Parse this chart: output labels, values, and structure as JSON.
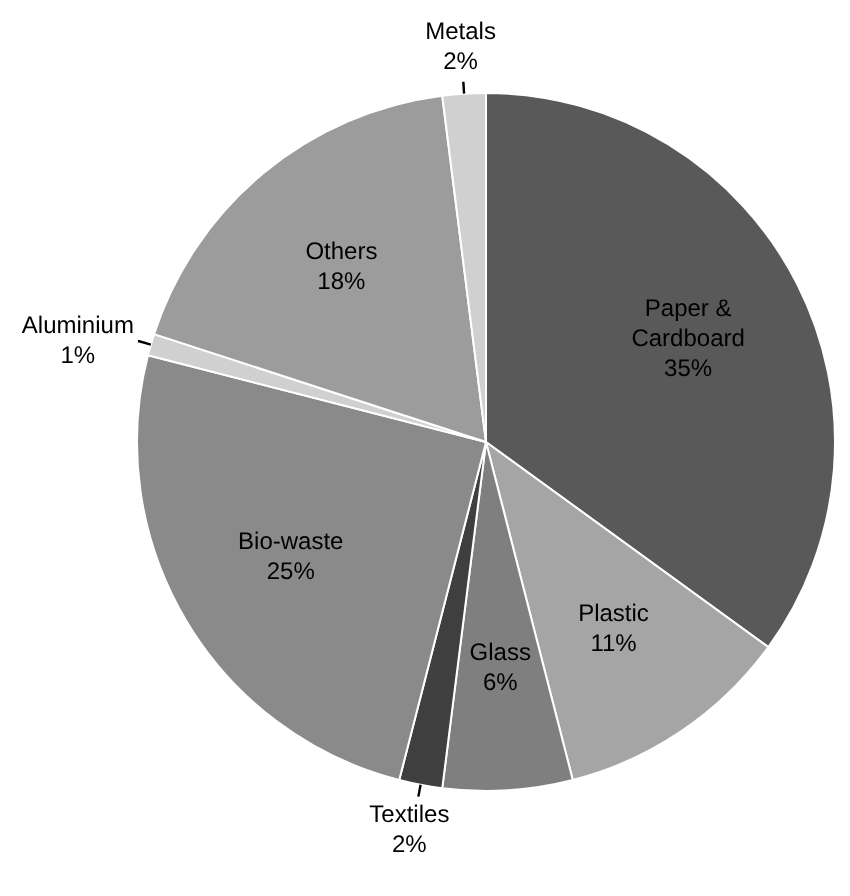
{
  "chart_data": {
    "type": "pie",
    "categories": [
      "Paper & Cardboard",
      "Plastic",
      "Glass",
      "Textiles",
      "Bio-waste",
      "Aluminium",
      "Others",
      "Metals"
    ],
    "values": [
      35,
      11,
      6,
      2,
      25,
      1,
      18,
      2
    ],
    "value_labels": [
      "35%",
      "11%",
      "6%",
      "2%",
      "25%",
      "1%",
      "18%",
      "2%"
    ],
    "colors": [
      "#595959",
      "#a5a5a5",
      "#7f7f7f",
      "#3f3f3f",
      "#8a8a8a",
      "#d0d0d0",
      "#9c9c9c",
      "#d0d0d0"
    ],
    "legend": false
  }
}
